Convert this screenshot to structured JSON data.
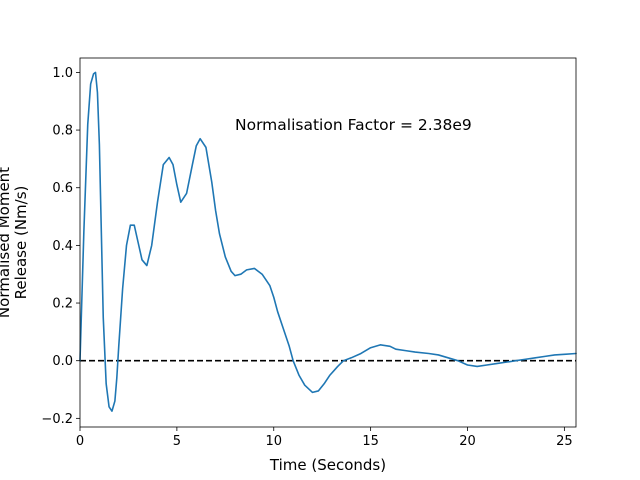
{
  "chart_data": {
    "type": "line",
    "title": "",
    "xlabel": "Time (Seconds)",
    "ylabel_lines": [
      "Normalised Moment",
      "Release (Nm/s)"
    ],
    "xlim": [
      0,
      25.6
    ],
    "ylim": [
      -0.23,
      1.05
    ],
    "xticks": [
      0,
      5,
      10,
      15,
      20,
      25
    ],
    "yticks": [
      -0.2,
      0.0,
      0.2,
      0.4,
      0.6,
      0.8,
      1.0
    ],
    "ytick_labels": [
      "−0.2",
      "0.0",
      "0.2",
      "0.4",
      "0.6",
      "0.8",
      "1.0"
    ],
    "grid": false,
    "annotation": {
      "text": "Normalisation Factor = 2.38e9",
      "x": 8.0,
      "y": 0.8
    },
    "reference_line": {
      "y": 0.0,
      "style": "dashed",
      "color": "#000000"
    },
    "series": [
      {
        "color": "#1f77b4",
        "x": [
          0,
          0.2,
          0.4,
          0.55,
          0.7,
          0.8,
          0.9,
          1.0,
          1.1,
          1.2,
          1.35,
          1.5,
          1.65,
          1.8,
          1.9,
          2.0,
          2.2,
          2.4,
          2.6,
          2.8,
          3.0,
          3.2,
          3.45,
          3.7,
          4.0,
          4.3,
          4.6,
          4.8,
          5.0,
          5.2,
          5.5,
          5.8,
          6.0,
          6.2,
          6.5,
          6.8,
          7.0,
          7.2,
          7.5,
          7.8,
          8.0,
          8.3,
          8.6,
          9.0,
          9.4,
          9.8,
          10.0,
          10.2,
          10.5,
          10.8,
          11.0,
          11.3,
          11.6,
          12.0,
          12.3,
          12.6,
          12.9,
          13.1,
          13.3,
          13.6,
          14.0,
          14.5,
          15.0,
          15.5,
          16.0,
          16.3,
          16.8,
          17.3,
          18.0,
          18.5,
          19.0,
          19.5,
          20.0,
          20.5,
          21.0,
          21.5,
          22.0,
          22.5,
          23.0,
          23.5,
          24.0,
          24.5,
          25.0,
          25.6
        ],
        "y": [
          0.0,
          0.45,
          0.82,
          0.96,
          0.995,
          1.0,
          0.93,
          0.75,
          0.45,
          0.15,
          -0.08,
          -0.16,
          -0.175,
          -0.14,
          -0.06,
          0.05,
          0.25,
          0.4,
          0.47,
          0.47,
          0.41,
          0.35,
          0.33,
          0.4,
          0.55,
          0.68,
          0.705,
          0.68,
          0.61,
          0.55,
          0.58,
          0.68,
          0.745,
          0.77,
          0.74,
          0.62,
          0.52,
          0.44,
          0.36,
          0.31,
          0.295,
          0.3,
          0.315,
          0.32,
          0.3,
          0.26,
          0.22,
          0.17,
          0.11,
          0.05,
          0.0,
          -0.05,
          -0.085,
          -0.11,
          -0.105,
          -0.08,
          -0.05,
          -0.035,
          -0.02,
          0.0,
          0.01,
          0.025,
          0.045,
          0.055,
          0.05,
          0.04,
          0.035,
          0.03,
          0.025,
          0.02,
          0.01,
          0.0,
          -0.015,
          -0.02,
          -0.015,
          -0.01,
          -0.005,
          0.0,
          0.005,
          0.01,
          0.015,
          0.02,
          0.022,
          0.025
        ]
      }
    ]
  }
}
